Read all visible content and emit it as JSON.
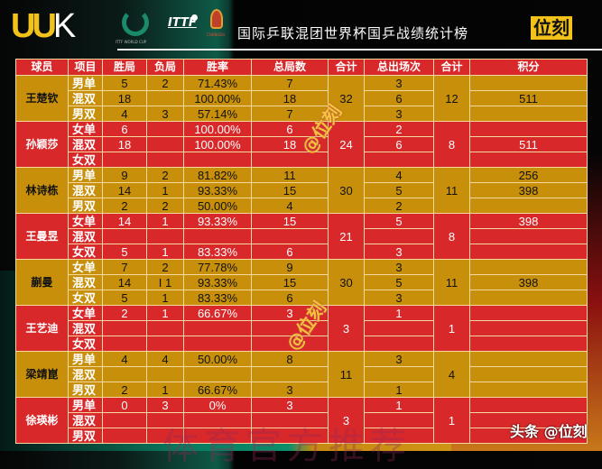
{
  "header": {
    "logo": "UU",
    "logo_k": "K",
    "worldcup_text": "ITTF WORLD CUP",
    "ittf": "ITTF",
    "chengdu": "CHENGDU",
    "title": "国际乒联混团世界杯国乒战绩统计榜",
    "brand": "位刻"
  },
  "columns": [
    "球员",
    "项目",
    "胜局",
    "负局",
    "胜率",
    "总局数",
    "合计",
    "总出场次",
    "合计",
    "积分"
  ],
  "players": [
    {
      "name": "王楚钦",
      "games_total": "32",
      "apps_total": "12",
      "rows": [
        {
          "event": "男单",
          "w": "5",
          "l": "2",
          "rate": "71.43%",
          "games": "7",
          "apps": "3",
          "pts": ""
        },
        {
          "event": "混双",
          "w": "18",
          "l": "",
          "rate": "100.00%",
          "games": "18",
          "apps": "6",
          "pts": "511"
        },
        {
          "event": "男双",
          "w": "4",
          "l": "3",
          "rate": "57.14%",
          "games": "7",
          "apps": "3",
          "pts": ""
        }
      ]
    },
    {
      "name": "孙颖莎",
      "games_total": "24",
      "apps_total": "8",
      "rows": [
        {
          "event": "女单",
          "w": "6",
          "l": "",
          "rate": "100.00%",
          "games": "6",
          "apps": "2",
          "pts": ""
        },
        {
          "event": "混双",
          "w": "18",
          "l": "",
          "rate": "100.00%",
          "games": "18",
          "apps": "6",
          "pts": "511"
        },
        {
          "event": "女双",
          "w": "",
          "l": "",
          "rate": "",
          "games": "",
          "apps": "",
          "pts": ""
        }
      ]
    },
    {
      "name": "林诗栋",
      "games_total": "30",
      "apps_total": "11",
      "rows": [
        {
          "event": "男单",
          "w": "9",
          "l": "2",
          "rate": "81.82%",
          "games": "11",
          "apps": "4",
          "pts": "256"
        },
        {
          "event": "混双",
          "w": "14",
          "l": "1",
          "rate": "93.33%",
          "games": "15",
          "apps": "5",
          "pts": "398"
        },
        {
          "event": "男双",
          "w": "2",
          "l": "2",
          "rate": "50.00%",
          "games": "4",
          "apps": "2",
          "pts": ""
        }
      ]
    },
    {
      "name": "王曼昱",
      "games_total": "21",
      "apps_total": "8",
      "rows": [
        {
          "event": "女单",
          "w": "14",
          "l": "1",
          "rate": "93.33%",
          "games": "15",
          "apps": "5",
          "pts": "398"
        },
        {
          "event": "混双",
          "w": "",
          "l": "",
          "rate": "",
          "games": "",
          "apps": "",
          "pts": ""
        },
        {
          "event": "女双",
          "w": "5",
          "l": "1",
          "rate": "83.33%",
          "games": "6",
          "apps": "3",
          "pts": ""
        }
      ]
    },
    {
      "name": "蒯曼",
      "games_total": "30",
      "apps_total": "11",
      "rows": [
        {
          "event": "女单",
          "w": "7",
          "l": "2",
          "rate": "77.78%",
          "games": "9",
          "apps": "3",
          "pts": ""
        },
        {
          "event": "混双",
          "w": "14",
          "l": "I 1",
          "rate": "93.33%",
          "games": "15",
          "apps": "5",
          "pts": "398"
        },
        {
          "event": "女双",
          "w": "5",
          "l": "1",
          "rate": "83.33%",
          "games": "6",
          "apps": "3",
          "pts": ""
        }
      ]
    },
    {
      "name": "王艺迪",
      "games_total": "3",
      "apps_total": "1",
      "rows": [
        {
          "event": "女单",
          "w": "2",
          "l": "1",
          "rate": "66.67%",
          "games": "3",
          "apps": "1",
          "pts": ""
        },
        {
          "event": "混双",
          "w": "",
          "l": "",
          "rate": "",
          "games": "",
          "apps": "",
          "pts": ""
        },
        {
          "event": "女双",
          "w": "",
          "l": "",
          "rate": "",
          "games": "",
          "apps": "",
          "pts": ""
        }
      ]
    },
    {
      "name": "梁靖崑",
      "games_total": "11",
      "apps_total": "4",
      "rows": [
        {
          "event": "男单",
          "w": "4",
          "l": "4",
          "rate": "50.00%",
          "games": "8",
          "apps": "3",
          "pts": ""
        },
        {
          "event": "混双",
          "w": "",
          "l": "",
          "rate": "",
          "games": "",
          "apps": "",
          "pts": ""
        },
        {
          "event": "男双",
          "w": "2",
          "l": "1",
          "rate": "66.67%",
          "games": "3",
          "apps": "1",
          "pts": ""
        }
      ]
    },
    {
      "name": "徐瑛彬",
      "games_total": "3",
      "apps_total": "1",
      "rows": [
        {
          "event": "男单",
          "w": "0",
          "l": "3",
          "rate": "0%",
          "games": "3",
          "apps": "1",
          "pts": ""
        },
        {
          "event": "混双",
          "w": "",
          "l": "",
          "rate": "",
          "games": "",
          "apps": "",
          "pts": ""
        },
        {
          "event": "男双",
          "w": "",
          "l": "",
          "rate": "",
          "games": "",
          "apps": "",
          "pts": ""
        }
      ]
    }
  ],
  "watermarks": {
    "at_brand": "@位刻",
    "faint": "体育官方推荐",
    "toutiao": "头条 @位刻"
  },
  "colors": {
    "gold_row": "#c8900a",
    "red_row": "#d8282a",
    "brand_yellow": "#f2c21a"
  }
}
